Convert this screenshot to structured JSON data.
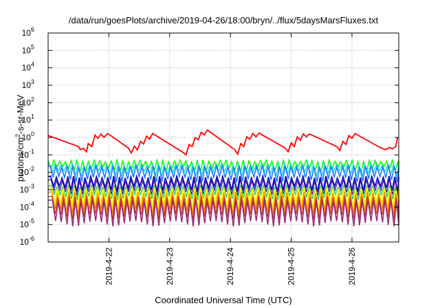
{
  "chart_data": {
    "type": "line",
    "title": "/data/run/goesPlots/archive/2019-04-26/18:00/bryn/../flux/5daysMarsFluxes.txt",
    "xlabel": "Coordinated Universal Time (UTC)",
    "ylabel_main": "protons/cm",
    "ylabel_sup": "2",
    "ylabel_tail": "-s-sr-MeV",
    "yscale": "log",
    "ylim_exp": [
      -6,
      6
    ],
    "y_ticks": [
      {
        "base": "10",
        "exp": "-6"
      },
      {
        "base": "10",
        "exp": "-5"
      },
      {
        "base": "10",
        "exp": "-4"
      },
      {
        "base": "10",
        "exp": "-3"
      },
      {
        "base": "10",
        "exp": "-2"
      },
      {
        "base": "10",
        "exp": "-1"
      },
      {
        "base": "10",
        "exp": "0"
      },
      {
        "base": "10",
        "exp": "1"
      },
      {
        "base": "10",
        "exp": "2"
      },
      {
        "base": "10",
        "exp": "3"
      },
      {
        "base": "10",
        "exp": "4"
      },
      {
        "base": "10",
        "exp": "5"
      },
      {
        "base": "10",
        "exp": "6"
      }
    ],
    "xlim_days": [
      21.0,
      26.77
    ],
    "x_ticks": [
      {
        "label": "2019-4-22",
        "day": 22
      },
      {
        "label": "2019-4-23",
        "day": 23
      },
      {
        "label": "2019-4-24",
        "day": 24
      },
      {
        "label": "2019-4-25",
        "day": 25
      },
      {
        "label": "2019-4-26",
        "day": 26
      }
    ],
    "grid": true,
    "series": [
      {
        "color": "#ff0000",
        "type": "sawtooth",
        "width": 1.8,
        "points": [
          [
            21.0,
            1.3
          ],
          [
            21.5,
            0.3
          ],
          [
            21.53,
            0.2
          ],
          [
            21.58,
            0.24
          ],
          [
            21.63,
            0.15
          ],
          [
            21.66,
            0.45
          ],
          [
            21.72,
            0.3
          ],
          [
            21.77,
            1.4
          ],
          [
            21.82,
            0.9
          ],
          [
            21.87,
            1.6
          ],
          [
            21.92,
            1.0
          ],
          [
            21.98,
            1.7
          ],
          [
            22.32,
            0.25
          ],
          [
            22.37,
            0.13
          ],
          [
            22.42,
            0.32
          ],
          [
            22.47,
            0.19
          ],
          [
            22.52,
            0.6
          ],
          [
            22.57,
            0.42
          ],
          [
            22.62,
            1.2
          ],
          [
            22.67,
            0.8
          ],
          [
            22.72,
            1.7
          ],
          [
            23.22,
            0.14
          ],
          [
            23.27,
            0.1
          ],
          [
            23.32,
            0.4
          ],
          [
            23.37,
            0.3
          ],
          [
            23.42,
            1.0
          ],
          [
            23.47,
            0.75
          ],
          [
            23.52,
            2.0
          ],
          [
            23.57,
            1.4
          ],
          [
            23.62,
            2.7
          ],
          [
            24.07,
            0.2
          ],
          [
            24.12,
            0.11
          ],
          [
            24.17,
            0.45
          ],
          [
            24.22,
            0.3
          ],
          [
            24.27,
            1.1
          ],
          [
            24.32,
            0.8
          ],
          [
            24.37,
            1.7
          ],
          [
            24.42,
            1.1
          ],
          [
            24.47,
            1.8
          ],
          [
            24.9,
            0.25
          ],
          [
            24.95,
            0.15
          ],
          [
            25.0,
            0.5
          ],
          [
            25.05,
            0.3
          ],
          [
            25.1,
            1.1
          ],
          [
            25.15,
            0.7
          ],
          [
            25.2,
            1.6
          ],
          [
            25.25,
            1.1
          ],
          [
            25.3,
            1.6
          ],
          [
            25.75,
            0.3
          ],
          [
            25.8,
            0.18
          ],
          [
            25.85,
            0.6
          ],
          [
            25.9,
            0.4
          ],
          [
            25.95,
            1.3
          ],
          [
            26.0,
            0.9
          ],
          [
            26.05,
            1.7
          ],
          [
            26.45,
            0.28
          ],
          [
            26.55,
            0.2
          ],
          [
            26.62,
            0.27
          ],
          [
            26.66,
            0.22
          ],
          [
            26.72,
            0.3
          ],
          [
            26.75,
            1.0
          ]
        ]
      },
      {
        "color": "#00ff00",
        "type": "comb",
        "period": 0.0944,
        "top": 0.045,
        "bottom": 0.016,
        "phase": 0.0,
        "width": 1.6
      },
      {
        "color": "#00ddee",
        "type": "comb",
        "period": 0.0944,
        "top": 0.028,
        "bottom": 0.009,
        "phase": 0.02,
        "width": 1.3
      },
      {
        "color": "#1a7aff",
        "type": "comb",
        "period": 0.0944,
        "top": 0.022,
        "bottom": 0.0042,
        "phase": 0.03,
        "width": 1.6
      },
      {
        "color": "#0000cc",
        "type": "comb",
        "period": 0.0944,
        "top": 0.0055,
        "bottom": 0.0012,
        "phase": 0.04,
        "width": 1.6
      },
      {
        "color": "#4b0f8c",
        "type": "comb",
        "period": 0.0944,
        "top": 0.0035,
        "bottom": 0.0007,
        "phase": 0.045,
        "width": 1.2
      },
      {
        "color": "#00cc66",
        "type": "comb",
        "period": 0.0944,
        "top": 0.0016,
        "bottom": 0.0004,
        "phase": 0.05,
        "width": 1.2
      },
      {
        "color": "#ffff00",
        "type": "comb",
        "period": 0.0944,
        "top": 0.0012,
        "bottom": 0.00012,
        "phase": 0.055,
        "width": 2.0
      },
      {
        "color": "#ff8800",
        "type": "comb",
        "period": 0.0944,
        "top": 0.0007,
        "bottom": 6e-05,
        "phase": 0.06,
        "width": 1.4
      },
      {
        "color": "#cc3300",
        "type": "comb",
        "period": 0.0944,
        "top": 0.0004,
        "bottom": 3e-05,
        "phase": 0.065,
        "width": 1.2
      },
      {
        "color": "#9b2a7a",
        "type": "comb",
        "period": 0.0944,
        "top": 0.00025,
        "bottom": 1.2e-05,
        "phase": 0.07,
        "width": 1.6
      }
    ]
  }
}
